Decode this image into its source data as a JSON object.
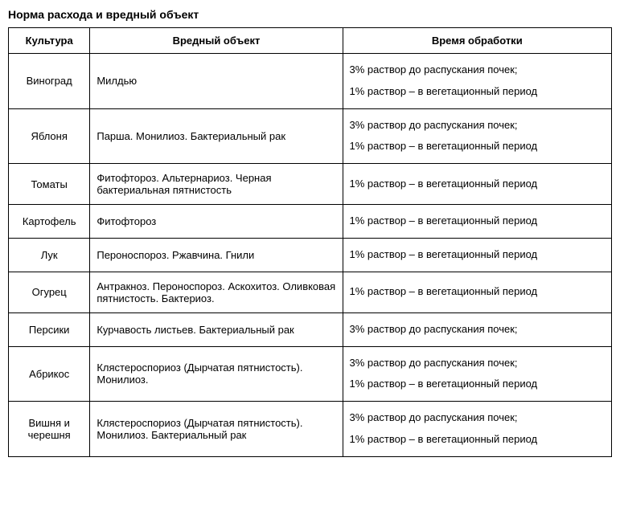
{
  "title": "Норма расхода и вредный объект",
  "table": {
    "columns": [
      "Культура",
      "Вредный объект",
      "Время обработки"
    ],
    "rows": [
      {
        "crop": "Виноград",
        "pest": "Милдью",
        "time": [
          "3% раствор до распускания почек;",
          "1% раствор – в вегетационный период"
        ]
      },
      {
        "crop": "Яблоня",
        "pest": "Парша. Монилиоз. Бактериальный рак",
        "time": [
          "3% раствор до распускания почек;",
          "1% раствор – в вегетационный период"
        ]
      },
      {
        "crop": "Томаты",
        "pest": "Фитофтороз. Альтернариоз. Черная бактериальная пятнистость",
        "time": [
          "1% раствор – в вегетационный период"
        ]
      },
      {
        "crop": "Картофель",
        "pest": "Фитофтороз",
        "time": [
          "1% раствор – в вегетационный период"
        ]
      },
      {
        "crop": "Лук",
        "pest": "Пероноспороз. Ржавчина.  Гнили",
        "time": [
          "1% раствор – в вегетационный период"
        ]
      },
      {
        "crop": "Огурец",
        "pest": "Антракноз. Пероноспороз. Аскохитоз. Оливковая пятнистость. Бактериоз.",
        "time": [
          "1% раствор – в вегетационный период"
        ]
      },
      {
        "crop": "Персики",
        "pest": "Курчавость листьев. Бактериальный  рак",
        "time": [
          "3% раствор до распускания почек;"
        ]
      },
      {
        "crop": "Абрикос",
        "pest": " Клястероспориоз (Дырчатая пятнистость). Монилиоз.",
        "time": [
          "3% раствор до распускания почек;",
          "1% раствор – в вегетационный период"
        ]
      },
      {
        "crop": "Вишня и черешня",
        "pest": "Клястероспориоз (Дырчатая пятнистость). Монилиоз. Бактериальный  рак",
        "time": [
          "3% раствор до распускания почек;",
          "1% раствор – в вегетационный период"
        ]
      }
    ]
  }
}
